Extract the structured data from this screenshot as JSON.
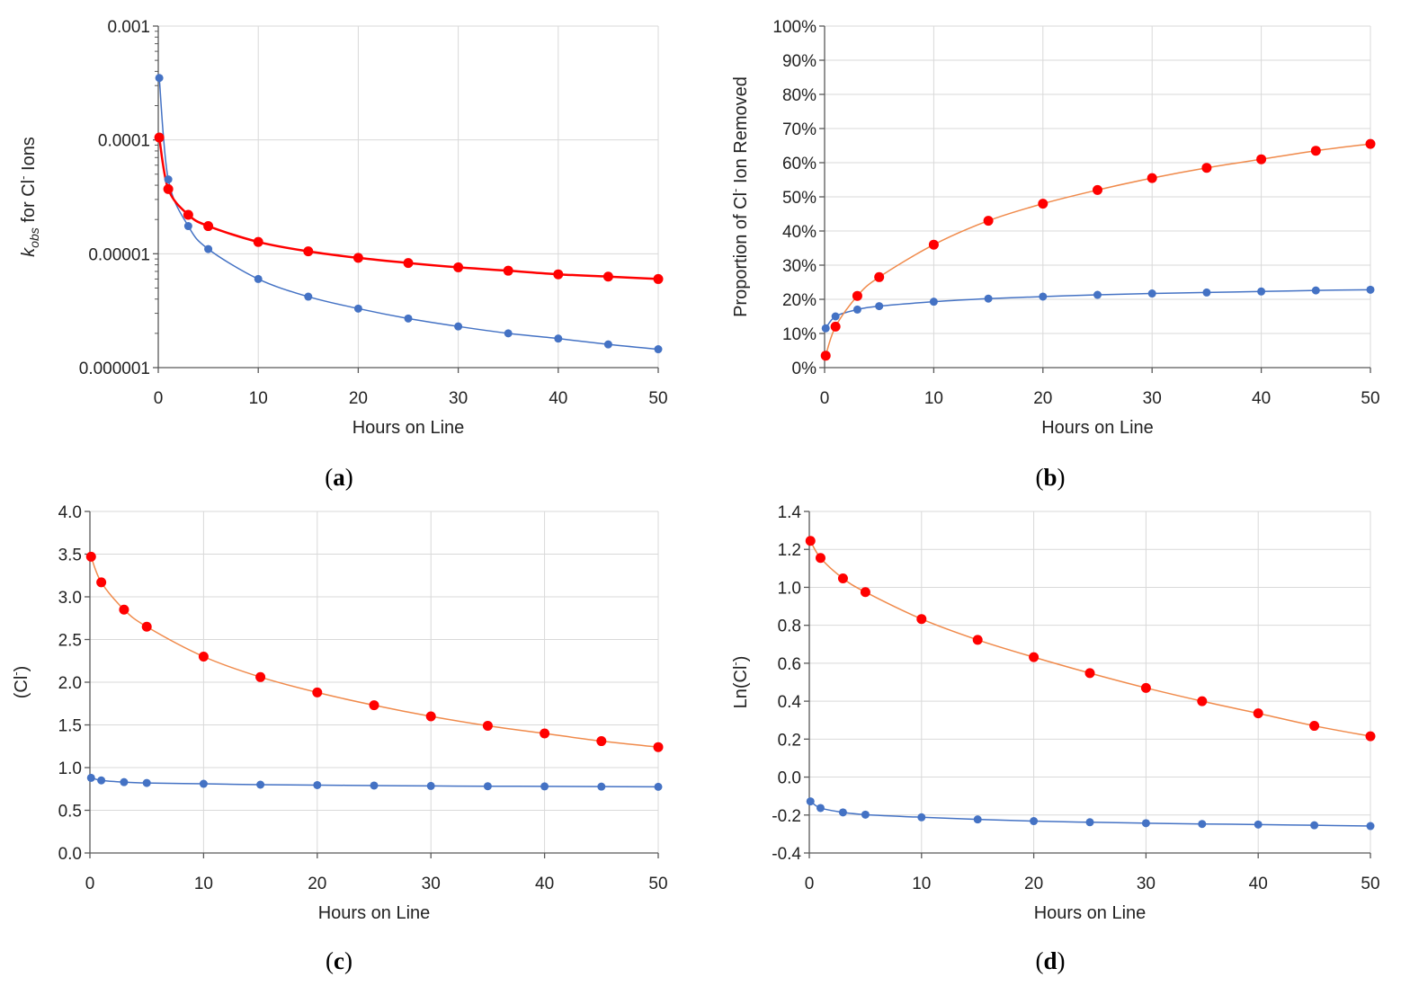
{
  "colors": {
    "red_series": "#ff0000",
    "red_line": "#f08a4b",
    "blue_series": "#4472c4",
    "grid": "#d9d9d9",
    "axis": "#595959"
  },
  "chart_data": [
    {
      "id": "a",
      "type": "line",
      "caption": "a",
      "xlabel": "Hours on Line",
      "ylabel_main": "k",
      "ylabel_sub": "obs",
      "ylabel_rest": " for Cl",
      "ylabel_sup": "-",
      "ylabel_end": " Ions",
      "yscale": "log",
      "xlim": [
        0,
        50
      ],
      "ylim": [
        1e-06,
        0.001
      ],
      "xticks": [
        0,
        10,
        20,
        30,
        40,
        50
      ],
      "yticks": [
        1e-06,
        1e-05,
        0.0001,
        0.001
      ],
      "xtick_labels": [
        "0",
        "10",
        "20",
        "30",
        "40",
        "50"
      ],
      "ytick_labels": [
        "0.000001",
        "0.00001",
        "0.0001",
        "0.001"
      ],
      "series": [
        {
          "name": "red",
          "color": "#ff0000",
          "line_color": "#ff0000",
          "line_width": 2.5,
          "x": [
            0.1,
            1,
            3,
            5,
            10,
            15,
            20,
            25,
            30,
            35,
            40,
            45,
            50
          ],
          "y": [
            0.000105,
            3.7e-05,
            2.2e-05,
            1.75e-05,
            1.27e-05,
            1.05e-05,
            9.2e-06,
            8.3e-06,
            7.6e-06,
            7.1e-06,
            6.6e-06,
            6.3e-06,
            6e-06
          ]
        },
        {
          "name": "blue",
          "color": "#4472c4",
          "line_color": "#4472c4",
          "line_width": 1.5,
          "x": [
            0.1,
            1,
            3,
            5,
            10,
            15,
            20,
            25,
            30,
            35,
            40,
            45,
            50
          ],
          "y": [
            0.00035,
            4.5e-05,
            1.75e-05,
            1.1e-05,
            6e-06,
            4.2e-06,
            3.3e-06,
            2.7e-06,
            2.3e-06,
            2e-06,
            1.8e-06,
            1.6e-06,
            1.45e-06
          ]
        }
      ]
    },
    {
      "id": "b",
      "type": "line",
      "caption": "b",
      "xlabel": "Hours on Line",
      "ylabel_main": "Proportion of Cl",
      "ylabel_sup": "-",
      "ylabel_end": " Ion Removed",
      "yscale": "linear",
      "xlim": [
        0,
        50
      ],
      "ylim": [
        0,
        100
      ],
      "xticks": [
        0,
        10,
        20,
        30,
        40,
        50
      ],
      "yticks": [
        0,
        10,
        20,
        30,
        40,
        50,
        60,
        70,
        80,
        90,
        100
      ],
      "xtick_labels": [
        "0",
        "10",
        "20",
        "30",
        "40",
        "50"
      ],
      "ytick_labels": [
        "0%",
        "10%",
        "20%",
        "30%",
        "40%",
        "50%",
        "60%",
        "70%",
        "80%",
        "90%",
        "100%"
      ],
      "series": [
        {
          "name": "red",
          "color": "#ff0000",
          "line_color": "#f08a4b",
          "line_width": 1.5,
          "x": [
            0.1,
            1,
            3,
            5,
            10,
            15,
            20,
            25,
            30,
            35,
            40,
            45,
            50
          ],
          "y": [
            3.5,
            12,
            21,
            26.5,
            36,
            43,
            48,
            52,
            55.5,
            58.5,
            61,
            63.5,
            65.5
          ]
        },
        {
          "name": "blue",
          "color": "#4472c4",
          "line_color": "#4472c4",
          "line_width": 1.5,
          "x": [
            0.1,
            1,
            3,
            5,
            10,
            15,
            20,
            25,
            30,
            35,
            40,
            45,
            50
          ],
          "y": [
            11.5,
            15,
            17,
            18,
            19.3,
            20.2,
            20.8,
            21.3,
            21.7,
            22,
            22.3,
            22.6,
            22.8
          ]
        }
      ]
    },
    {
      "id": "c",
      "type": "line",
      "caption": "c",
      "xlabel": "Hours on Line",
      "ylabel_main": "(Cl",
      "ylabel_sup": "-",
      "ylabel_end": ")",
      "yscale": "linear",
      "xlim": [
        0,
        50
      ],
      "ylim": [
        0,
        4
      ],
      "xticks": [
        0,
        10,
        20,
        30,
        40,
        50
      ],
      "yticks": [
        0,
        0.5,
        1,
        1.5,
        2,
        2.5,
        3,
        3.5,
        4
      ],
      "xtick_labels": [
        "0",
        "10",
        "20",
        "30",
        "40",
        "50"
      ],
      "ytick_labels": [
        "0.0",
        "0.5",
        "1.0",
        "1.5",
        "2.0",
        "2.5",
        "3.0",
        "3.5",
        "4.0"
      ],
      "series": [
        {
          "name": "red",
          "color": "#ff0000",
          "line_color": "#f08a4b",
          "line_width": 1.5,
          "x": [
            0.1,
            1,
            3,
            5,
            10,
            15,
            20,
            25,
            30,
            35,
            40,
            45,
            50
          ],
          "y": [
            3.47,
            3.17,
            2.85,
            2.65,
            2.3,
            2.06,
            1.88,
            1.73,
            1.6,
            1.49,
            1.4,
            1.31,
            1.24
          ]
        },
        {
          "name": "blue",
          "color": "#4472c4",
          "line_color": "#4472c4",
          "line_width": 1.5,
          "x": [
            0.1,
            1,
            3,
            5,
            10,
            15,
            20,
            25,
            30,
            35,
            40,
            45,
            50
          ],
          "y": [
            0.88,
            0.85,
            0.83,
            0.82,
            0.81,
            0.8,
            0.795,
            0.79,
            0.785,
            0.782,
            0.78,
            0.777,
            0.775
          ]
        }
      ]
    },
    {
      "id": "d",
      "type": "line",
      "caption": "d",
      "xlabel": "Hours on Line",
      "ylabel_main": "Ln(Cl",
      "ylabel_sup": "-",
      "ylabel_end": ")",
      "yscale": "linear",
      "xlim": [
        0,
        50
      ],
      "ylim": [
        -0.4,
        1.4
      ],
      "xticks": [
        0,
        10,
        20,
        30,
        40,
        50
      ],
      "yticks": [
        -0.4,
        -0.2,
        0,
        0.2,
        0.4,
        0.6,
        0.8,
        1,
        1.2,
        1.4
      ],
      "xtick_labels": [
        "0",
        "10",
        "20",
        "30",
        "40",
        "50"
      ],
      "ytick_labels": [
        "-0.4",
        "-0.2",
        "0.0",
        "0.2",
        "0.4",
        "0.6",
        "0.8",
        "1.0",
        "1.2",
        "1.4"
      ],
      "series": [
        {
          "name": "red",
          "color": "#ff0000",
          "line_color": "#f08a4b",
          "line_width": 1.5,
          "x": [
            0.1,
            1,
            3,
            5,
            10,
            15,
            20,
            25,
            30,
            35,
            40,
            45,
            50
          ],
          "y": [
            1.245,
            1.155,
            1.047,
            0.975,
            0.833,
            0.723,
            0.632,
            0.548,
            0.47,
            0.4,
            0.336,
            0.27,
            0.215
          ]
        },
        {
          "name": "blue",
          "color": "#4472c4",
          "line_color": "#4472c4",
          "line_width": 1.5,
          "x": [
            0.1,
            1,
            3,
            5,
            10,
            15,
            20,
            25,
            30,
            35,
            40,
            45,
            50
          ],
          "y": [
            -0.128,
            -0.163,
            -0.186,
            -0.198,
            -0.212,
            -0.223,
            -0.232,
            -0.238,
            -0.243,
            -0.247,
            -0.25,
            -0.254,
            -0.258
          ]
        }
      ]
    }
  ]
}
